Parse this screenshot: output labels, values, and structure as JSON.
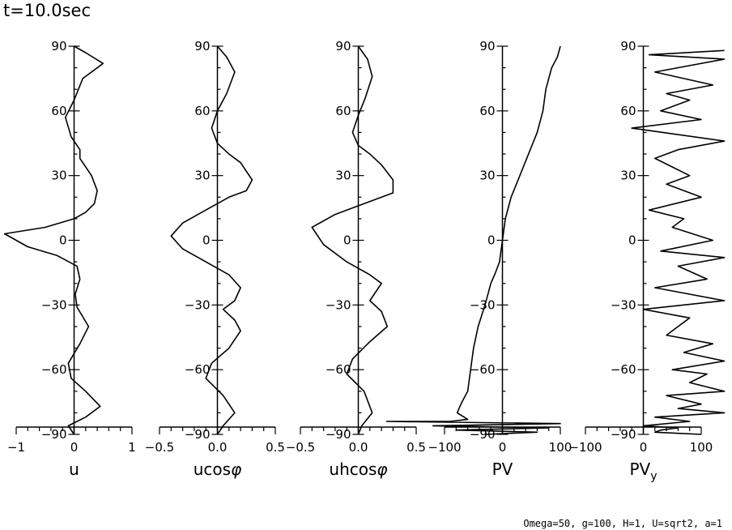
{
  "title": "t=10.0sec",
  "footer": "Omega=50, g=100, H=1, U=sqrt2, a=1",
  "chart_data": [
    {
      "type": "line",
      "name": "u",
      "xlabel": "u",
      "xlabel_sub": "",
      "xlim": [
        -1,
        1
      ],
      "xticks": [
        -1,
        0,
        1
      ],
      "xtick_labels": [
        "−1",
        "0",
        "1"
      ],
      "ylim": [
        -90,
        90
      ],
      "yticks": [
        -90,
        -60,
        -30,
        0,
        30,
        60,
        90
      ],
      "ytick_labels": [
        "−90",
        "−60",
        "−30",
        "0",
        "30",
        "60",
        "90"
      ],
      "series": [
        {
          "name": "u",
          "x": [
            0,
            0.2,
            0.5,
            0.15,
            0,
            -0.15,
            -0.05,
            0.1,
            0.1,
            0.3,
            0.4,
            0.35,
            0.2,
            0,
            -0.5,
            -1.2,
            -0.8,
            -0.3,
            0.05,
            0.1,
            0.02,
            0.05,
            0.25,
            0.1,
            -0.1,
            -0.05,
            0.2,
            0.45,
            0.2,
            -0.1,
            0
          ],
          "y": [
            90,
            87,
            82,
            75,
            65,
            57,
            48,
            42,
            38,
            30,
            23,
            17,
            13,
            10,
            6,
            3,
            -3,
            -7,
            -12,
            -18,
            -25,
            -31,
            -40,
            -48,
            -57,
            -64,
            -70,
            -77,
            -82,
            -86,
            -90
          ]
        }
      ]
    },
    {
      "type": "line",
      "name": "ucos",
      "xlabel": "ucos",
      "xlabel_sub": "φ",
      "xlim": [
        -0.5,
        0.5
      ],
      "xticks": [
        -0.5,
        0,
        0.5
      ],
      "xtick_labels": [
        "−0.5",
        "0.0",
        "0.5"
      ],
      "ylim": [
        -90,
        90
      ],
      "yticks": [
        -90,
        -60,
        -30,
        0,
        30,
        60,
        90
      ],
      "ytick_labels": [
        "−90",
        "−60",
        "−30",
        "0",
        "30",
        "60",
        "90"
      ],
      "series": [
        {
          "name": "ucos",
          "x": [
            0,
            0.08,
            0.15,
            0.08,
            0,
            -0.05,
            0,
            0.1,
            0.2,
            0.3,
            0.25,
            0.1,
            -0.1,
            -0.3,
            -0.4,
            -0.3,
            -0.1,
            0.1,
            0.2,
            0.15,
            0.05,
            0.15,
            0.2,
            0.1,
            -0.05,
            -0.1,
            0.05,
            0.15,
            0.05,
            0
          ],
          "y": [
            90,
            85,
            78,
            68,
            60,
            52,
            45,
            40,
            36,
            28,
            23,
            20,
            14,
            8,
            2,
            -4,
            -10,
            -16,
            -22,
            -28,
            -32,
            -37,
            -42,
            -50,
            -57,
            -64,
            -72,
            -80,
            -86,
            -90
          ]
        }
      ]
    },
    {
      "type": "line",
      "name": "uhcos",
      "xlabel": "uhcos",
      "xlabel_sub": "φ",
      "xlim": [
        -0.5,
        0.5
      ],
      "xticks": [
        -0.5,
        0,
        0.5
      ],
      "xtick_labels": [
        "−0.5",
        "0.0",
        "0.5"
      ],
      "ylim": [
        -90,
        90
      ],
      "yticks": [
        -90,
        -60,
        -30,
        0,
        30,
        60,
        90
      ],
      "ytick_labels": [
        "−90",
        "−60",
        "−30",
        "0",
        "30",
        "60",
        "90"
      ],
      "series": [
        {
          "name": "uhcos",
          "x": [
            0,
            0.08,
            0.12,
            0.06,
            0,
            -0.05,
            0,
            0.1,
            0.2,
            0.3,
            0.3,
            0.1,
            -0.2,
            -0.4,
            -0.3,
            -0.1,
            0.1,
            0.2,
            0.1,
            0.2,
            0.25,
            0.1,
            -0.05,
            -0.1,
            0.05,
            0.12,
            0.03,
            0
          ],
          "y": [
            90,
            84,
            76,
            66,
            58,
            50,
            44,
            40,
            35,
            28,
            22,
            18,
            12,
            6,
            -2,
            -10,
            -16,
            -20,
            -28,
            -33,
            -40,
            -47,
            -55,
            -62,
            -70,
            -80,
            -86,
            -90
          ]
        }
      ]
    },
    {
      "type": "line",
      "name": "PV",
      "xlabel": "PV",
      "xlabel_sub": "",
      "xlim": [
        -100,
        100
      ],
      "xticks": [
        -100,
        0,
        100
      ],
      "xtick_labels": [
        "−100",
        "0",
        "100"
      ],
      "ylim": [
        -90,
        90
      ],
      "yticks": [
        -90,
        -60,
        -30,
        0,
        30,
        60,
        90
      ],
      "ytick_labels": [
        "−90",
        "−60",
        "−30",
        "0",
        "30",
        "60",
        "90"
      ],
      "series": [
        {
          "name": "PV",
          "x": [
            100,
            95,
            85,
            75,
            70,
            60,
            45,
            30,
            15,
            5,
            0,
            -5,
            -12,
            -20,
            -30,
            -42,
            -50,
            -55,
            -60,
            -70,
            -75,
            -78,
            -60,
            -90,
            -200,
            100,
            -120,
            80,
            -80,
            60,
            -30
          ],
          "y": [
            90,
            85,
            80,
            70,
            60,
            50,
            40,
            30,
            20,
            10,
            0,
            -10,
            -15,
            -20,
            -30,
            -40,
            -50,
            -60,
            -70,
            -75,
            -78,
            -80,
            -83,
            -84,
            -84,
            -85,
            -86,
            -87,
            -88,
            -89,
            -90
          ]
        }
      ]
    },
    {
      "type": "line",
      "name": "PVy",
      "xlabel": "PV",
      "xlabel_sub": "y",
      "xlim": [
        -100,
        100
      ],
      "xticks": [
        -100,
        0,
        100
      ],
      "xtick_labels": [
        "−100",
        "0",
        "100"
      ],
      "ylim": [
        -90,
        90
      ],
      "yticks": [
        -90,
        -60,
        -30,
        0,
        30,
        60,
        90
      ],
      "ytick_labels": [
        "−90",
        "−60",
        "−30",
        "0",
        "30",
        "60",
        "90"
      ],
      "series": [
        {
          "name": "PVy",
          "x": [
            140,
            10,
            140,
            20,
            120,
            40,
            80,
            30,
            100,
            -20,
            140,
            60,
            20,
            80,
            40,
            100,
            10,
            70,
            50,
            120,
            30,
            140,
            60,
            110,
            20,
            140,
            0,
            80,
            60,
            40,
            120,
            70,
            140,
            50,
            110,
            80,
            140,
            40,
            100,
            60,
            140,
            20,
            80,
            0,
            60,
            30,
            20,
            60,
            100
          ],
          "y": [
            88,
            86,
            84,
            78,
            72,
            68,
            65,
            60,
            56,
            52,
            46,
            42,
            38,
            30,
            26,
            20,
            14,
            10,
            6,
            0,
            -5,
            -8,
            -12,
            -18,
            -22,
            -28,
            -32,
            -36,
            -40,
            -44,
            -48,
            -52,
            -56,
            -60,
            -62,
            -66,
            -70,
            -72,
            -76,
            -78,
            -80,
            -82,
            -84,
            -86,
            -87,
            -88,
            -89,
            -89.5,
            -90
          ]
        }
      ]
    }
  ]
}
